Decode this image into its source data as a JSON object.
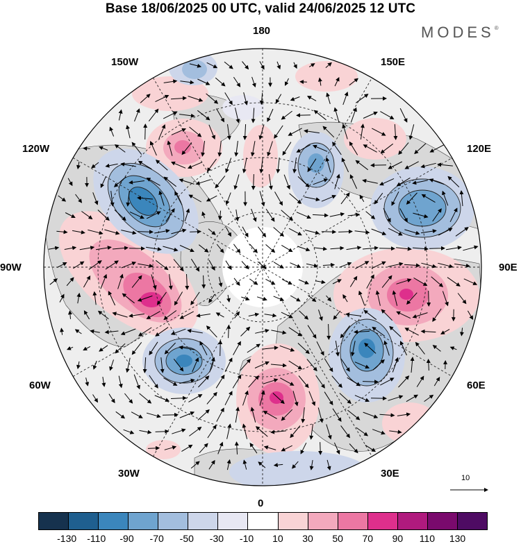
{
  "title": "Base 18/06/2025 00 UTC, valid 24/06/2025 12 UTC",
  "logo": "MODES",
  "longitude_labels": {
    "l180": "180",
    "l150w": "150W",
    "l150e": "150E",
    "l120w": "120W",
    "l120e": "120E",
    "l90w": "90W",
    "l90e": "90E",
    "l60w": "60W",
    "l60e": "60E",
    "l30w": "30W",
    "l30e": "30E",
    "l0": "0"
  },
  "reference_vector": "10",
  "colorbar": {
    "labels": [
      "-130",
      "-110",
      "-90",
      "-70",
      "-50",
      "-30",
      "-10",
      "10",
      "30",
      "50",
      "70",
      "90",
      "110",
      "130"
    ],
    "colors": [
      "#16324e",
      "#1f5f8f",
      "#3b86bc",
      "#6fa4cf",
      "#a3bede",
      "#cdd6ea",
      "#e8e8f3",
      "#ffffff",
      "#f9d3d5",
      "#f3a9bd",
      "#ec77a3",
      "#de2f8c",
      "#b01a7e",
      "#7a0a6d",
      "#4e0b63"
    ]
  },
  "map_colors": {
    "land": "#d4d4d4",
    "coast": "#333333"
  }
}
